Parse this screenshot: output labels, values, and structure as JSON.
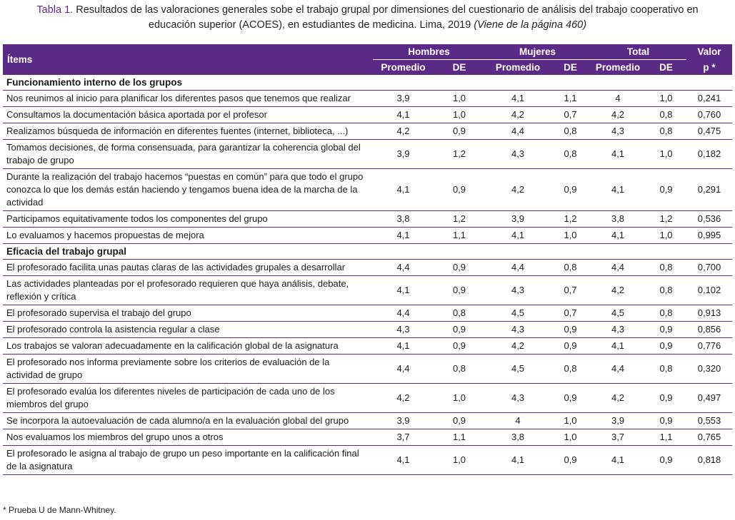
{
  "caption": {
    "label": "Tabla 1.",
    "line1_text": " Resultados de las valoraciones generales sobe el trabajo grupal por dimensiones del cuestionario de análisis del trabajo cooperativo en",
    "line2_text": "educación superior (ACOES), en estudiantes de medicina. Lima, 2019 ",
    "note": "(Viene de la página 460)"
  },
  "header": {
    "items": "Ítems",
    "hombres": "Hombres",
    "mujeres": "Mujeres",
    "total": "Total",
    "valor_line1": "Valor",
    "valor_line2": "p *",
    "promedio": "Promedio",
    "de": "DE"
  },
  "sections": [
    {
      "title": "Funcionamiento interno de los grupos",
      "rows": [
        {
          "item": "Nos reunimos al inicio para planificar los diferentes pasos que tenemos que realizar",
          "hp": "3,9",
          "hde": "1,0",
          "mp": "4,1",
          "mde": "1,1",
          "tp": "4",
          "tde": "1,0",
          "p": "0,241"
        },
        {
          "item": "Consultamos la documentación básica aportada por el profesor",
          "hp": "4,1",
          "hde": "1,0",
          "mp": "4,2",
          "mde": "0,7",
          "tp": "4,2",
          "tde": "0,8",
          "p": "0,760"
        },
        {
          "item": "Realizamos búsqueda de información en diferentes fuentes (internet, biblioteca, ...)",
          "hp": "4,2",
          "hde": "0,9",
          "mp": "4,4",
          "mde": "0,8",
          "tp": "4,3",
          "tde": "0,8",
          "p": "0,475"
        },
        {
          "item": "Tomamos decisiones, de forma consensuada, para garantizar la coherencia global del trabajo de grupo",
          "hp": "3,9",
          "hde": "1,2",
          "mp": "4,3",
          "mde": "0,8",
          "tp": "4,1",
          "tde": "1,0",
          "p": "0,182"
        },
        {
          "item": "Durante la realización del trabajo hacemos “puestas en común” para que todo el grupo conozca lo que los demás están haciendo y tengamos buena idea de la marcha de la actividad",
          "hp": "4,1",
          "hde": "0,9",
          "mp": "4,2",
          "mde": "0,9",
          "tp": "4,1",
          "tde": "0,9",
          "p": "0,291"
        },
        {
          "item": "Participamos equitativamente todos los componentes del grupo",
          "hp": "3,8",
          "hde": "1,2",
          "mp": "3,9",
          "mde": "1,2",
          "tp": "3,8",
          "tde": "1,2",
          "p": "0,536"
        },
        {
          "item": "Lo evaluamos y hacemos propuestas de mejora",
          "hp": "4,1",
          "hde": "1,1",
          "mp": "4,1",
          "mde": "1,0",
          "tp": "4,1",
          "tde": "1,0",
          "p": "0,995"
        }
      ]
    },
    {
      "title": "Eficacia del trabajo grupal",
      "rows": [
        {
          "item": "El profesorado facilita unas pautas claras de las actividades grupales a desarrollar",
          "hp": "4,4",
          "hde": "0,9",
          "mp": "4,4",
          "mde": "0,8",
          "tp": "4,4",
          "tde": "0,8",
          "p": "0,700"
        },
        {
          "item": "Las actividades planteadas por el profesorado requieren que haya análisis, debate, reflexión y crítica",
          "hp": "4,1",
          "hde": "0,9",
          "mp": "4,3",
          "mde": "0,7",
          "tp": "4,2",
          "tde": "0,8",
          "p": "0,102"
        },
        {
          "item": "El profesorado supervisa el trabajo del grupo",
          "hp": "4,4",
          "hde": "0,8",
          "mp": "4,5",
          "mde": "0,7",
          "tp": "4,5",
          "tde": "0,8",
          "p": "0,913"
        },
        {
          "item": "El profesorado controla la asistencia regular a clase",
          "hp": "4,3",
          "hde": "0,9",
          "mp": "4,3",
          "mde": "0,9",
          "tp": "4,3",
          "tde": "0,9",
          "p": "0,856"
        },
        {
          "item": "Los trabajos se valoran adecuadamente en la calificación global de la asignatura",
          "hp": "4,1",
          "hde": "0,9",
          "mp": "4,2",
          "mde": "0,9",
          "tp": "4,1",
          "tde": "0,9",
          "p": "0,776"
        },
        {
          "item": "El profesorado nos informa previamente sobre los criterios de evaluación de la actividad de grupo",
          "hp": "4,4",
          "hde": "0,8",
          "mp": "4,5",
          "mde": "0,8",
          "tp": "4,4",
          "tde": "0,8",
          "p": "0,320"
        },
        {
          "item": "El profesorado evalúa los diferentes niveles de participación de cada uno de los miembros del grupo",
          "hp": "4,2",
          "hde": "1,0",
          "mp": "4,3",
          "mde": "0,9",
          "tp": "4,2",
          "tde": "0,9",
          "p": "0,497"
        },
        {
          "item": "Se incorpora la autoevaluación de cada alumno/a en la evaluación global del grupo",
          "hp": "3,9",
          "hde": "0,9",
          "mp": "4",
          "mde": "1,0",
          "tp": "3,9",
          "tde": "0,9",
          "p": "0,553"
        },
        {
          "item": "Nos evaluamos los miembros del grupo unos a otros",
          "hp": "3,7",
          "hde": "1,1",
          "mp": "3,8",
          "mde": "1,0",
          "tp": "3,7",
          "tde": "1,1",
          "p": "0,765"
        },
        {
          "item": "El profesorado le asigna al trabajo de grupo un peso importante en la calificación final de la asignatura",
          "hp": "4,1",
          "hde": "1,0",
          "mp": "4,1",
          "mde": "0,9",
          "tp": "4,1",
          "tde": "0,9",
          "p": "0,818"
        }
      ]
    }
  ],
  "footnote": "* Prueba U de Mann-Whitney.",
  "colors": {
    "header_bg": "#5b2a86",
    "rule": "#5b2a86",
    "caption_label": "#5b2a86"
  }
}
